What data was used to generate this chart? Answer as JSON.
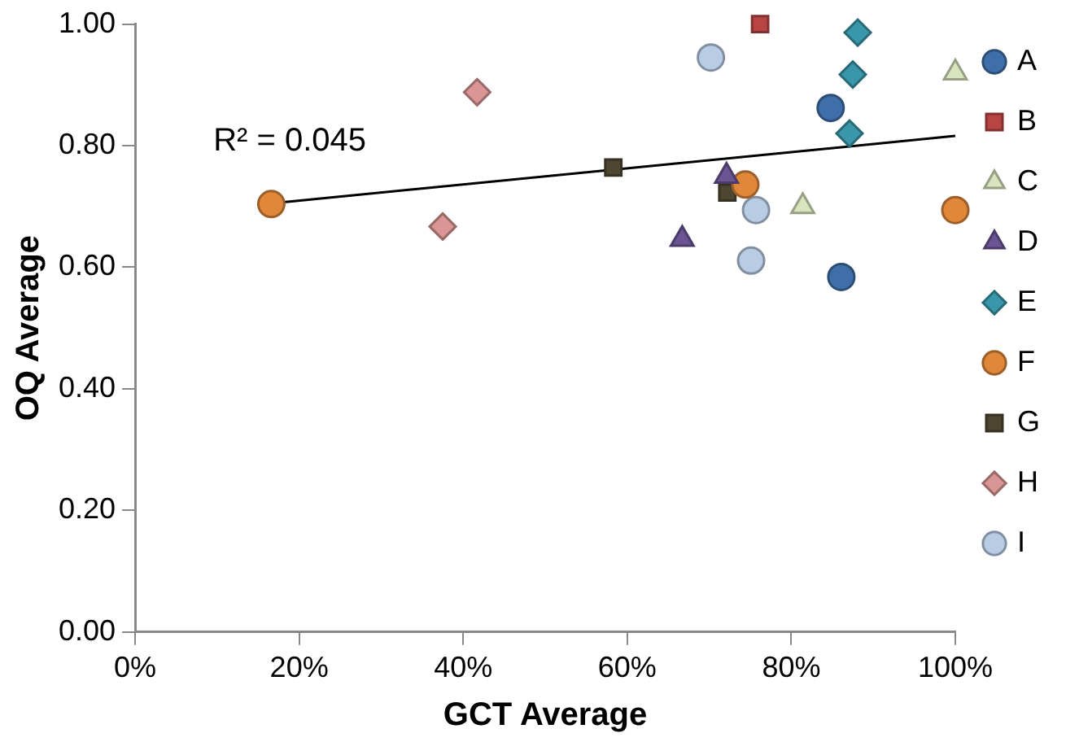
{
  "chart_data": {
    "type": "scatter",
    "xlabel": "GCT Average",
    "ylabel": "OQ Average",
    "annotations": [
      "R² = 0.045"
    ],
    "xlim": [
      0,
      100
    ],
    "xticks": [
      {
        "value": 0,
        "label": "0%"
      },
      {
        "value": 20,
        "label": "20%"
      },
      {
        "value": 40,
        "label": "40%"
      },
      {
        "value": 60,
        "label": "60%"
      },
      {
        "value": 80,
        "label": "80%"
      },
      {
        "value": 100,
        "label": "100%"
      }
    ],
    "ylim": [
      0,
      1
    ],
    "yticks": [
      {
        "value": 0,
        "label": "0.00"
      },
      {
        "value": 0.2,
        "label": "0.20"
      },
      {
        "value": 0.4,
        "label": "0.40"
      },
      {
        "value": 0.6,
        "label": "0.60"
      },
      {
        "value": 0.8,
        "label": "0.80"
      },
      {
        "value": 1,
        "label": "1.00"
      }
    ],
    "grid": false,
    "legend": "right",
    "series": [
      {
        "name": "A",
        "color": "#3f6fa8",
        "marker": "circle",
        "x": [
          84.8,
          86.1
        ],
        "values": [
          0.862,
          0.584
        ]
      },
      {
        "name": "B",
        "color": "#b94444",
        "marker": "square",
        "x": [
          76.2
        ],
        "values": [
          1.0
        ]
      },
      {
        "name": "C",
        "color": "#d7e4bd",
        "marker": "triangle",
        "x": [
          100,
          81.4
        ],
        "values": [
          0.92,
          0.7
        ]
      },
      {
        "name": "D",
        "color": "#6a5494",
        "marker": "triangle",
        "x": [
          72.1,
          66.7
        ],
        "values": [
          0.75,
          0.646
        ]
      },
      {
        "name": "E",
        "color": "#3a97ab",
        "marker": "diamond",
        "x": [
          88.1,
          87.5,
          87.1
        ],
        "values": [
          0.986,
          0.917,
          0.82
        ]
      },
      {
        "name": "F",
        "color": "#e0873a",
        "marker": "circle",
        "x": [
          16.6,
          74.4,
          100
        ],
        "values": [
          0.704,
          0.736,
          0.694
        ]
      },
      {
        "name": "G",
        "color": "#4d4630",
        "marker": "square",
        "x": [
          58.3,
          72.2
        ],
        "values": [
          0.764,
          0.723
        ]
      },
      {
        "name": "H",
        "color": "#d99694",
        "marker": "diamond",
        "x": [
          41.7,
          37.5
        ],
        "values": [
          0.888,
          0.667
        ]
      },
      {
        "name": "I",
        "color": "#b8cce4",
        "marker": "circle",
        "x": [
          70.2,
          75.7,
          75.1
        ],
        "values": [
          0.945,
          0.694,
          0.611
        ]
      },
      {
        "type": "line",
        "color": "#000000",
        "marker": "none",
        "line_style": "solid",
        "x": [
          16.6,
          100
        ],
        "values": [
          0.705,
          0.816
        ]
      }
    ]
  }
}
